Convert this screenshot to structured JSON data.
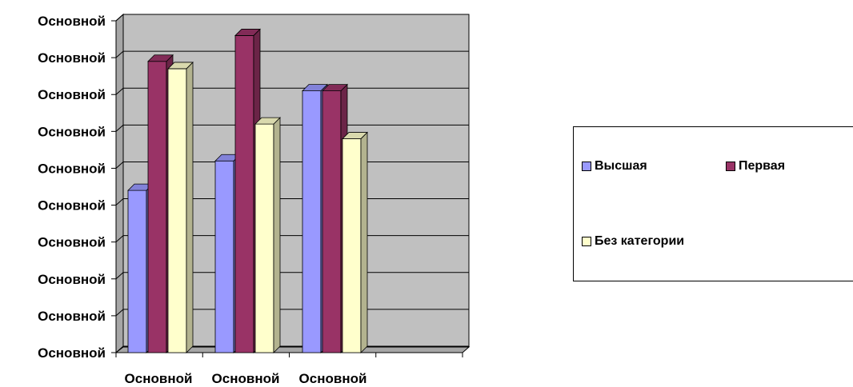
{
  "chart_data": {
    "type": "bar",
    "style": "3d-clustered-column",
    "categories": [
      "Основной",
      "Основной",
      "Основной"
    ],
    "y_tick_labels": [
      "Основной",
      "Основной",
      "Основной",
      "Основной",
      "Основной",
      "Основной",
      "Основной",
      "Основной",
      "Основной",
      "Основной"
    ],
    "ylim": [
      0,
      9
    ],
    "series": [
      {
        "name": "Высшая",
        "color": "#9999ff",
        "values": [
          4.4,
          5.2,
          7.1
        ]
      },
      {
        "name": "Первая",
        "color": "#993366",
        "values": [
          7.9,
          8.6,
          7.1
        ]
      },
      {
        "name": "Без категории",
        "color": "#ffffcc",
        "values": [
          7.7,
          6.2,
          5.8
        ]
      }
    ],
    "grid": true,
    "legend_position": "right",
    "wall_color": "#c0c0c0"
  }
}
